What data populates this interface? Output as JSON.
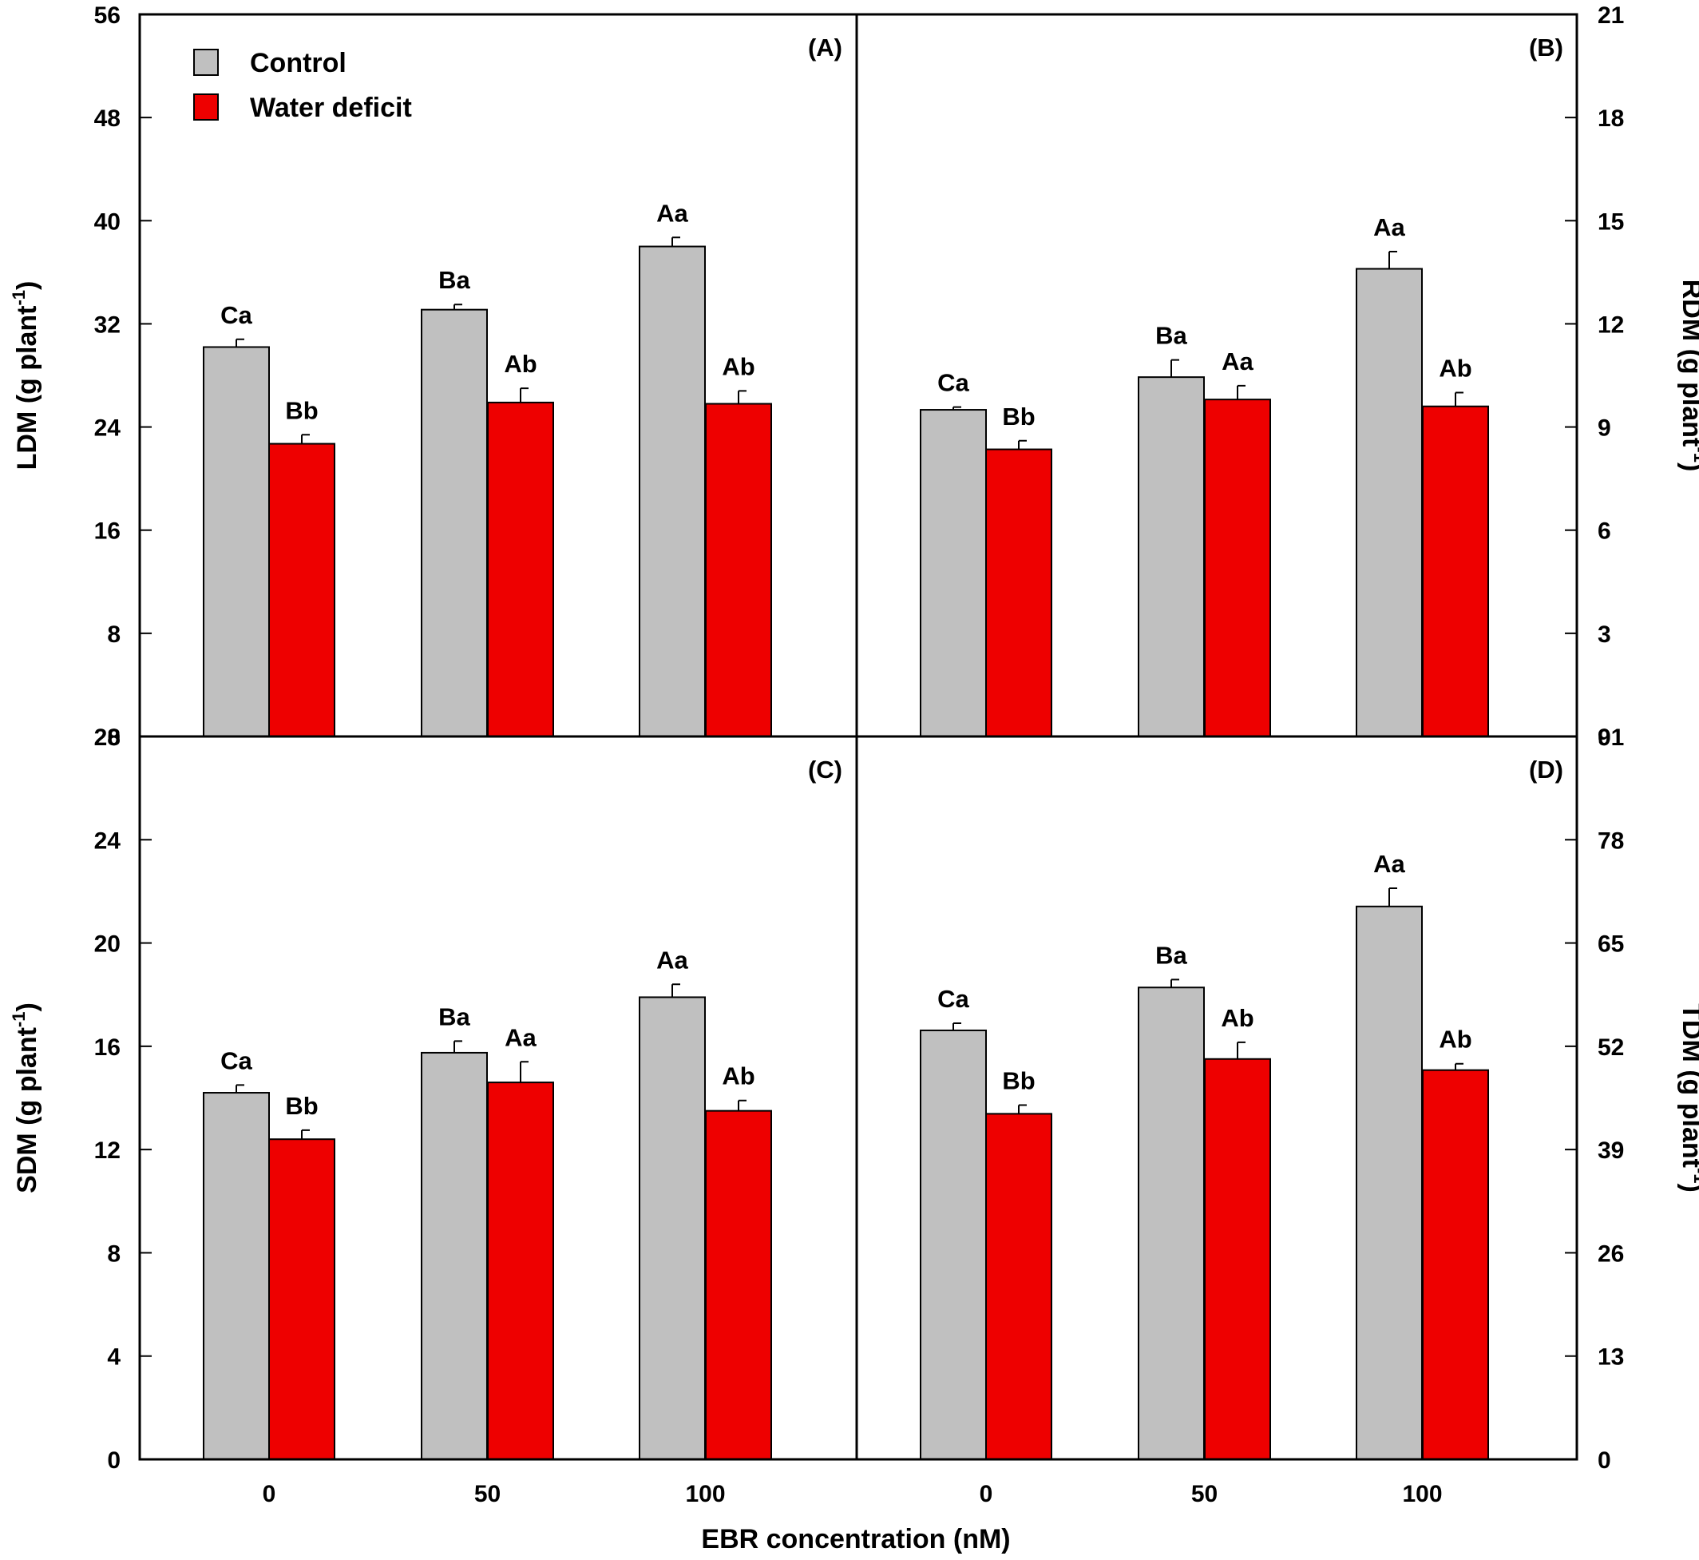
{
  "colors": {
    "control": "#c0c0c0",
    "deficit": "#ee0000",
    "axis": "#000000"
  },
  "x_title": "EBR concentration (nM)",
  "legend": {
    "placement": "top-left",
    "items": [
      {
        "label": "Control",
        "color": "#c0c0c0"
      },
      {
        "label": "Water deficit",
        "color": "#ee0000"
      }
    ]
  },
  "chart_data": [
    {
      "panel": "(A)",
      "type": "bar",
      "axis_side": "left",
      "categories": [
        "0",
        "50",
        "100"
      ],
      "ylabel": "LDM (g plant",
      "ylabel_sup": "-1",
      "ylabel_end": ")",
      "ylim": [
        0,
        56
      ],
      "yticks": [
        0,
        8,
        16,
        24,
        32,
        40,
        48,
        56
      ],
      "series": [
        {
          "name": "Control",
          "values": [
            30.2,
            33.1,
            38.0
          ],
          "errors": [
            0.6,
            0.4,
            0.7
          ],
          "labels": [
            "Ca",
            "Ba",
            "Aa"
          ]
        },
        {
          "name": "Water deficit",
          "values": [
            22.7,
            25.9,
            25.8
          ],
          "errors": [
            0.7,
            1.1,
            1.0
          ],
          "labels": [
            "Bb",
            "Ab",
            "Ab"
          ]
        }
      ]
    },
    {
      "panel": "(B)",
      "type": "bar",
      "axis_side": "right",
      "categories": [
        "0",
        "50",
        "100"
      ],
      "ylabel": "RDM (g plant",
      "ylabel_sup": "-1",
      "ylabel_end": ")",
      "ylim": [
        0,
        21
      ],
      "yticks": [
        0,
        3,
        6,
        9,
        12,
        15,
        18,
        21
      ],
      "series": [
        {
          "name": "Control",
          "values": [
            9.5,
            10.45,
            13.6
          ],
          "errors": [
            0.08,
            0.5,
            0.5
          ],
          "labels": [
            "Ca",
            "Ba",
            "Aa"
          ]
        },
        {
          "name": "Water deficit",
          "values": [
            8.35,
            9.8,
            9.6
          ],
          "errors": [
            0.25,
            0.4,
            0.4
          ],
          "labels": [
            "Bb",
            "Aa",
            "Ab"
          ]
        }
      ]
    },
    {
      "panel": "(C)",
      "type": "bar",
      "axis_side": "left",
      "categories": [
        "0",
        "50",
        "100"
      ],
      "ylabel": "SDM (g plant",
      "ylabel_sup": "-1",
      "ylabel_end": ")",
      "ylim": [
        0,
        28
      ],
      "yticks": [
        0,
        4,
        8,
        12,
        16,
        20,
        24,
        28
      ],
      "series": [
        {
          "name": "Control",
          "values": [
            14.2,
            15.75,
            17.9
          ],
          "errors": [
            0.3,
            0.45,
            0.5
          ],
          "labels": [
            "Ca",
            "Ba",
            "Aa"
          ]
        },
        {
          "name": "Water deficit",
          "values": [
            12.4,
            14.6,
            13.5
          ],
          "errors": [
            0.35,
            0.8,
            0.4
          ],
          "labels": [
            "Bb",
            "Aa",
            "Ab"
          ]
        }
      ]
    },
    {
      "panel": "(D)",
      "type": "bar",
      "axis_side": "right",
      "categories": [
        "0",
        "50",
        "100"
      ],
      "ylabel": "TDM (g plant",
      "ylabel_sup": "-1",
      "ylabel_end": ")",
      "ylim": [
        0,
        91
      ],
      "yticks": [
        0,
        13,
        26,
        39,
        52,
        65,
        78,
        91
      ],
      "series": [
        {
          "name": "Control",
          "values": [
            54.0,
            59.4,
            69.6
          ],
          "errors": [
            0.9,
            1.0,
            2.3
          ],
          "labels": [
            "Ca",
            "Ba",
            "Aa"
          ]
        },
        {
          "name": "Water deficit",
          "values": [
            43.5,
            50.4,
            49.0
          ],
          "errors": [
            1.1,
            2.1,
            0.8
          ],
          "labels": [
            "Bb",
            "Ab",
            "Ab"
          ]
        }
      ]
    }
  ]
}
